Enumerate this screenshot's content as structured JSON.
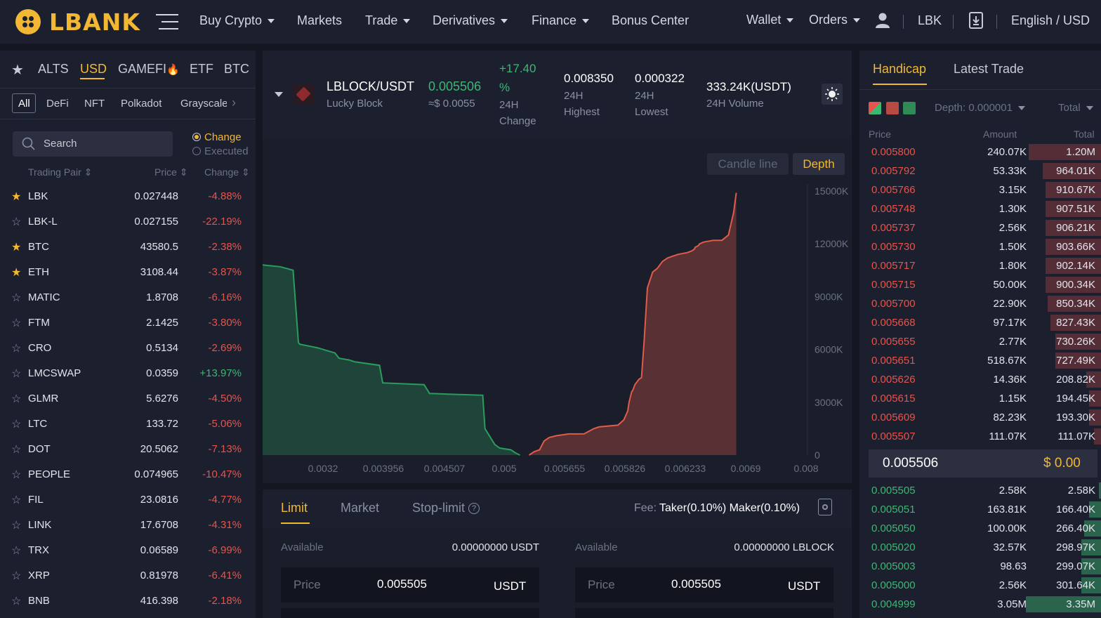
{
  "header": {
    "logo": "LBANK",
    "nav": [
      {
        "label": "Buy Crypto",
        "dropdown": true
      },
      {
        "label": "Markets",
        "dropdown": false
      },
      {
        "label": "Trade",
        "dropdown": true
      },
      {
        "label": "Derivatives",
        "dropdown": true
      },
      {
        "label": "Finance",
        "dropdown": true
      },
      {
        "label": "Bonus Center",
        "dropdown": false
      }
    ],
    "wallet": "Wallet",
    "orders": "Orders",
    "lbk": "LBK",
    "language": "English / USD"
  },
  "market": {
    "tabs": [
      "ALTS",
      "USD",
      "GAMEFI",
      "ETF",
      "BTC"
    ],
    "active_tab": "USD",
    "categories": [
      "All",
      "DeFi",
      "NFT",
      "Polkadot",
      "Grayscale"
    ],
    "active_category": "All",
    "search_placeholder": "Search",
    "radio_change": "Change",
    "radio_executed": "Executed",
    "col_pair": "Trading Pair",
    "col_price": "Price",
    "col_change": "Change",
    "rows": [
      {
        "pair": "LBK",
        "price": "0.027448",
        "change": "-4.88%",
        "fav": true,
        "dir": "down"
      },
      {
        "pair": "LBK-L",
        "price": "0.027155",
        "change": "-22.19%",
        "fav": false,
        "dir": "down"
      },
      {
        "pair": "BTC",
        "price": "43580.5",
        "change": "-2.38%",
        "fav": true,
        "dir": "down"
      },
      {
        "pair": "ETH",
        "price": "3108.44",
        "change": "-3.87%",
        "fav": true,
        "dir": "down"
      },
      {
        "pair": "MATIC",
        "price": "1.8708",
        "change": "-6.16%",
        "fav": false,
        "dir": "down"
      },
      {
        "pair": "FTM",
        "price": "2.1425",
        "change": "-3.80%",
        "fav": false,
        "dir": "down"
      },
      {
        "pair": "CRO",
        "price": "0.5134",
        "change": "-2.69%",
        "fav": false,
        "dir": "down"
      },
      {
        "pair": "LMCSWAP",
        "price": "0.0359",
        "change": "+13.97%",
        "fav": false,
        "dir": "up"
      },
      {
        "pair": "GLMR",
        "price": "5.6276",
        "change": "-4.50%",
        "fav": false,
        "dir": "down"
      },
      {
        "pair": "LTC",
        "price": "133.72",
        "change": "-5.06%",
        "fav": false,
        "dir": "down"
      },
      {
        "pair": "DOT",
        "price": "20.5062",
        "change": "-7.13%",
        "fav": false,
        "dir": "down"
      },
      {
        "pair": "PEOPLE",
        "price": "0.074965",
        "change": "-10.47%",
        "fav": false,
        "dir": "down"
      },
      {
        "pair": "FIL",
        "price": "23.0816",
        "change": "-4.77%",
        "fav": false,
        "dir": "down"
      },
      {
        "pair": "LINK",
        "price": "17.6708",
        "change": "-4.31%",
        "fav": false,
        "dir": "down"
      },
      {
        "pair": "TRX",
        "price": "0.06589",
        "change": "-6.99%",
        "fav": false,
        "dir": "down"
      },
      {
        "pair": "XRP",
        "price": "0.81978",
        "change": "-6.41%",
        "fav": false,
        "dir": "down"
      },
      {
        "pair": "BNB",
        "price": "416.398",
        "change": "-2.18%",
        "fav": false,
        "dir": "down"
      }
    ]
  },
  "ticker": {
    "pair": "LBLOCK/USDT",
    "name": "Lucky Block",
    "last": "0.005506",
    "last_usd": "≈$ 0.0055",
    "change_line1": "+17.40",
    "change_line2": "%",
    "change_label1": "24H",
    "change_label2": "Change",
    "high": "0.008350",
    "high_label1": "24H",
    "high_label2": "Highest",
    "low": "0.000322",
    "low_label1": "24H",
    "low_label2": "Lowest",
    "volume": "333.24K(USDT)",
    "volume_label": "24H Volume"
  },
  "chart_tabs": {
    "candle": "Candle line",
    "depth": "Depth",
    "active": "Depth"
  },
  "chart_data": {
    "type": "area",
    "x_ticks": [
      "0.0032",
      "0.003956",
      "0.004507",
      "0.005",
      "0.005655",
      "0.005826",
      "0.006233",
      "0.0069",
      "0.008"
    ],
    "y_ticks": [
      "15000K",
      "12000K",
      "9000K",
      "6000K",
      "3000K",
      "0"
    ],
    "ylim": [
      0,
      15000
    ],
    "series": [
      {
        "side": "bid",
        "color": "#2a9d5c",
        "x": [
          0,
          0.0324,
          0.0559,
          0.0657,
          0.068,
          0.1,
          0.1327,
          0.1402,
          0.1588,
          0.1684,
          0.2146,
          0.2203,
          0.2964,
          0.3065,
          0.404,
          0.4081,
          0.4261,
          0.435,
          0.4555,
          0.4653,
          0.4723
        ],
        "y": [
          10800,
          10700,
          10500,
          6400,
          6300,
          6100,
          5800,
          5500,
          5400,
          5300,
          5100,
          4100,
          4000,
          3500,
          3400,
          1500,
          600,
          400,
          300,
          100,
          0
        ],
        "area": true
      },
      {
        "side": "ask",
        "color": "#e05c4a",
        "x": [
          0.4891,
          0.4987,
          0.5082,
          0.5166,
          0.5262,
          0.5394,
          0.5621,
          0.5897,
          0.6077,
          0.6173,
          0.6521,
          0.6629,
          0.6701,
          0.6725,
          0.6773,
          0.6797,
          0.6833,
          0.6881,
          0.6905,
          0.6953,
          0.7002,
          0.7062,
          0.7158,
          0.7242,
          0.7338,
          0.7434,
          0.753,
          0.7626,
          0.7794,
          0.7878,
          0.7925,
          0.7937,
          0.7997,
          0.8021,
          0.8093,
          0.8273,
          0.8429,
          0.8549,
          0.8645,
          0.8693
        ],
        "y": [
          0,
          200,
          300,
          800,
          1000,
          1100,
          1200,
          1200,
          1500,
          1600,
          1700,
          2000,
          2500,
          3000,
          3600,
          3700,
          4000,
          4200,
          4300,
          4400,
          6500,
          9500,
          10400,
          10600,
          11000,
          11200,
          11300,
          11400,
          11500,
          11600,
          11700,
          11800,
          11900,
          12000,
          12100,
          12200,
          12200,
          12500,
          13800,
          14900
        ],
        "area": true
      }
    ]
  },
  "order_form": {
    "tabs": [
      "Limit",
      "Market",
      "Stop-limit"
    ],
    "active_tab": "Limit",
    "fee_label": "Fee:",
    "fee_value": "Taker(0.10%) Maker(0.10%)",
    "buy": {
      "available_label": "Available",
      "available_value": "0.00000000 USDT",
      "price_label": "Price",
      "price_value": "0.005505",
      "unit": "USDT"
    },
    "sell": {
      "available_label": "Available",
      "available_value": "0.00000000 LBLOCK",
      "price_label": "Price",
      "price_value": "0.005505",
      "unit": "USDT"
    }
  },
  "book": {
    "tabs": [
      "Handicap",
      "Latest Trade"
    ],
    "active_tab": "Handicap",
    "depth_label": "Depth:",
    "depth_value": "0.000001",
    "total_label": "Total",
    "col_price": "Price",
    "col_amount": "Amount",
    "col_total": "Total",
    "asks": [
      {
        "price": "0.005800",
        "amount": "240.07K",
        "total": "1.20M",
        "fill": 0.3
      },
      {
        "price": "0.005792",
        "amount": "53.33K",
        "total": "964.01K",
        "fill": 0.24
      },
      {
        "price": "0.005766",
        "amount": "3.15K",
        "total": "910.67K",
        "fill": 0.23
      },
      {
        "price": "0.005748",
        "amount": "1.30K",
        "total": "907.51K",
        "fill": 0.23
      },
      {
        "price": "0.005737",
        "amount": "2.56K",
        "total": "906.21K",
        "fill": 0.23
      },
      {
        "price": "0.005730",
        "amount": "1.50K",
        "total": "903.66K",
        "fill": 0.23
      },
      {
        "price": "0.005717",
        "amount": "1.80K",
        "total": "902.14K",
        "fill": 0.23
      },
      {
        "price": "0.005715",
        "amount": "50.00K",
        "total": "900.34K",
        "fill": 0.23
      },
      {
        "price": "0.005700",
        "amount": "22.90K",
        "total": "850.34K",
        "fill": 0.22
      },
      {
        "price": "0.005668",
        "amount": "97.17K",
        "total": "827.43K",
        "fill": 0.21
      },
      {
        "price": "0.005655",
        "amount": "2.77K",
        "total": "730.26K",
        "fill": 0.19
      },
      {
        "price": "0.005651",
        "amount": "518.67K",
        "total": "727.49K",
        "fill": 0.19
      },
      {
        "price": "0.005626",
        "amount": "14.36K",
        "total": "208.82K",
        "fill": 0.06
      },
      {
        "price": "0.005615",
        "amount": "1.15K",
        "total": "194.45K",
        "fill": 0.05
      },
      {
        "price": "0.005609",
        "amount": "82.23K",
        "total": "193.30K",
        "fill": 0.05
      },
      {
        "price": "0.005507",
        "amount": "111.07K",
        "total": "111.07K",
        "fill": 0.03
      }
    ],
    "mid_price": "0.005506",
    "mid_usd": "$ 0.00",
    "bids": [
      {
        "price": "0.005505",
        "amount": "2.58K",
        "total": "2.58K",
        "fill": 0.01
      },
      {
        "price": "0.005051",
        "amount": "163.81K",
        "total": "166.40K",
        "fill": 0.05
      },
      {
        "price": "0.005050",
        "amount": "100.00K",
        "total": "266.40K",
        "fill": 0.07
      },
      {
        "price": "0.005020",
        "amount": "32.57K",
        "total": "298.97K",
        "fill": 0.08
      },
      {
        "price": "0.005003",
        "amount": "98.63",
        "total": "299.07K",
        "fill": 0.08
      },
      {
        "price": "0.005000",
        "amount": "2.56K",
        "total": "301.64K",
        "fill": 0.08
      },
      {
        "price": "0.004999",
        "amount": "3.05M",
        "total": "3.35M",
        "fill": 0.31
      }
    ]
  },
  "colors": {
    "accent": "#f2b833",
    "up": "#3cb872",
    "down": "#e6544b",
    "panel": "#1c1f2e",
    "bg": "#141722"
  }
}
